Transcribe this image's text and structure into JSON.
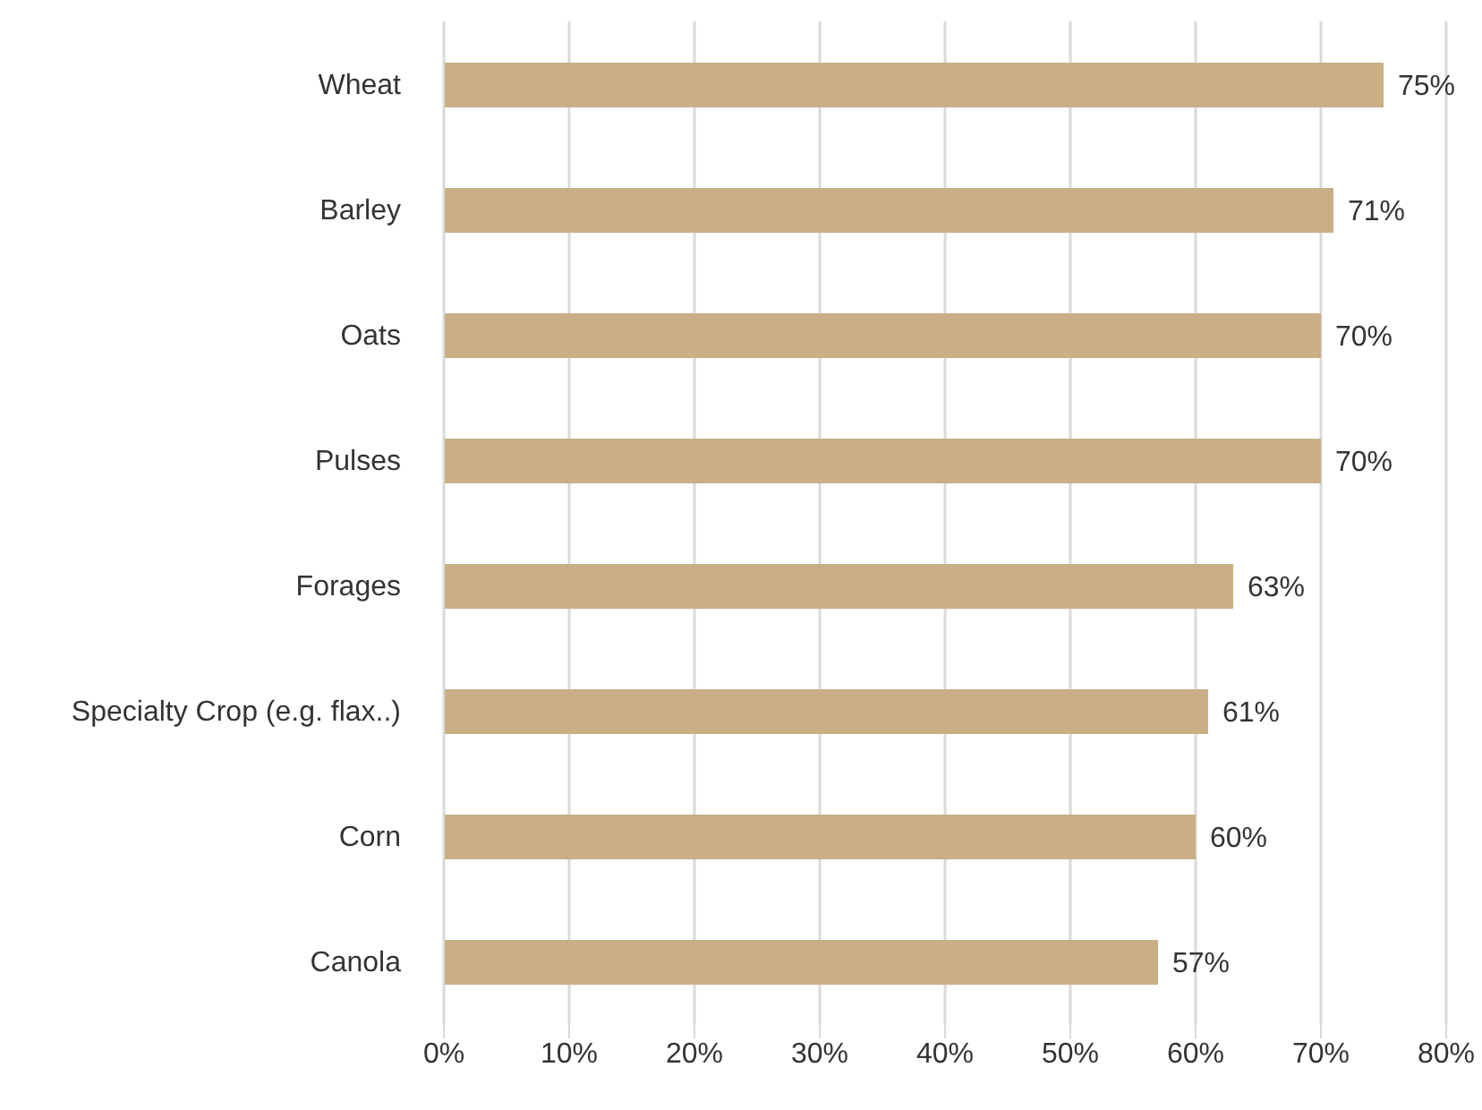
{
  "chart_data": {
    "type": "bar",
    "orientation": "horizontal",
    "categories": [
      "Wheat",
      "Barley",
      "Oats",
      "Pulses",
      "Forages",
      "Specialty Crop (e.g. flax..)",
      "Corn",
      "Canola"
    ],
    "values": [
      75,
      71,
      70,
      70,
      63,
      61,
      60,
      57
    ],
    "value_labels": [
      "75%",
      "71%",
      "70%",
      "70%",
      "63%",
      "61%",
      "60%",
      "57%"
    ],
    "color": "#c9ae86",
    "xlim": [
      0,
      80
    ],
    "xticks": [
      {
        "value": 0,
        "label": "0%"
      },
      {
        "value": 10,
        "label": "10%"
      },
      {
        "value": 20,
        "label": "20%"
      },
      {
        "value": 30,
        "label": "30%"
      },
      {
        "value": 40,
        "label": "40%"
      },
      {
        "value": 50,
        "label": "50%"
      },
      {
        "value": 60,
        "label": "60%"
      },
      {
        "value": 70,
        "label": "70%"
      },
      {
        "value": 80,
        "label": "80%"
      }
    ],
    "grid": "x"
  }
}
